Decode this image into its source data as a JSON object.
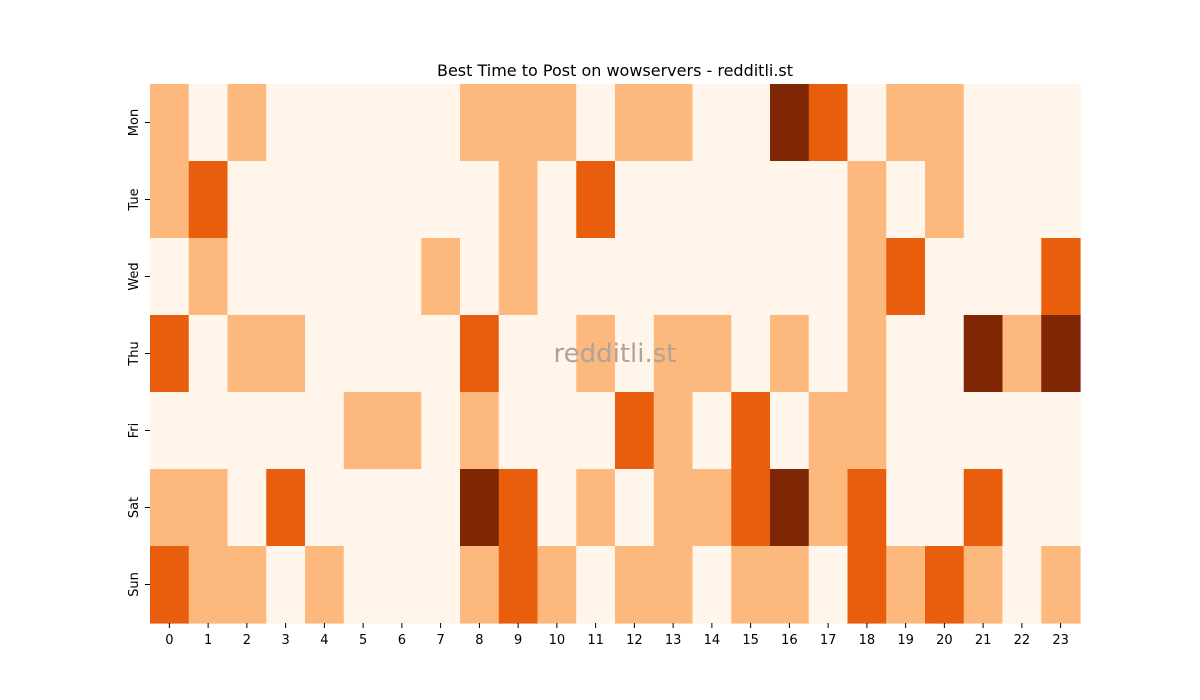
{
  "chart_data": {
    "type": "heatmap",
    "title": "Best Time to Post on wowservers - redditli.st",
    "watermark": "redditli.st",
    "x_categories": [
      "0",
      "1",
      "2",
      "3",
      "4",
      "5",
      "6",
      "7",
      "8",
      "9",
      "10",
      "11",
      "12",
      "13",
      "14",
      "15",
      "16",
      "17",
      "18",
      "19",
      "20",
      "21",
      "22",
      "23"
    ],
    "y_categories": [
      "Mon",
      "Tue",
      "Wed",
      "Thu",
      "Fri",
      "Sat",
      "Sun"
    ],
    "values": [
      [
        1,
        0,
        1,
        0,
        0,
        0,
        0,
        0,
        1,
        1,
        1,
        0,
        1,
        1,
        0,
        0,
        3,
        2,
        0,
        1,
        1,
        0,
        0,
        0
      ],
      [
        1,
        2,
        0,
        0,
        0,
        0,
        0,
        0,
        0,
        1,
        0,
        2,
        0,
        0,
        0,
        0,
        0,
        0,
        1,
        0,
        1,
        0,
        0,
        0
      ],
      [
        0,
        1,
        0,
        0,
        0,
        0,
        0,
        1,
        0,
        1,
        0,
        0,
        0,
        0,
        0,
        0,
        0,
        0,
        1,
        2,
        0,
        0,
        0,
        2
      ],
      [
        2,
        0,
        1,
        1,
        0,
        0,
        0,
        0,
        2,
        0,
        0,
        1,
        0,
        1,
        1,
        0,
        1,
        0,
        1,
        0,
        0,
        3,
        1,
        3
      ],
      [
        0,
        0,
        0,
        0,
        0,
        1,
        1,
        0,
        1,
        0,
        0,
        0,
        2,
        1,
        0,
        2,
        0,
        1,
        1,
        0,
        0,
        0,
        0,
        0
      ],
      [
        1,
        1,
        0,
        2,
        0,
        0,
        0,
        0,
        3,
        2,
        0,
        1,
        0,
        1,
        1,
        2,
        3,
        1,
        2,
        0,
        0,
        2,
        0,
        0
      ],
      [
        2,
        1,
        1,
        0,
        1,
        0,
        0,
        0,
        1,
        2,
        1,
        0,
        1,
        1,
        0,
        1,
        1,
        0,
        2,
        1,
        2,
        1,
        0,
        1
      ]
    ],
    "colors": [
      "#fff5eb",
      "#fdb97d",
      "#e95e0d",
      "#7f2704"
    ],
    "colorbar": false,
    "grid": false
  }
}
